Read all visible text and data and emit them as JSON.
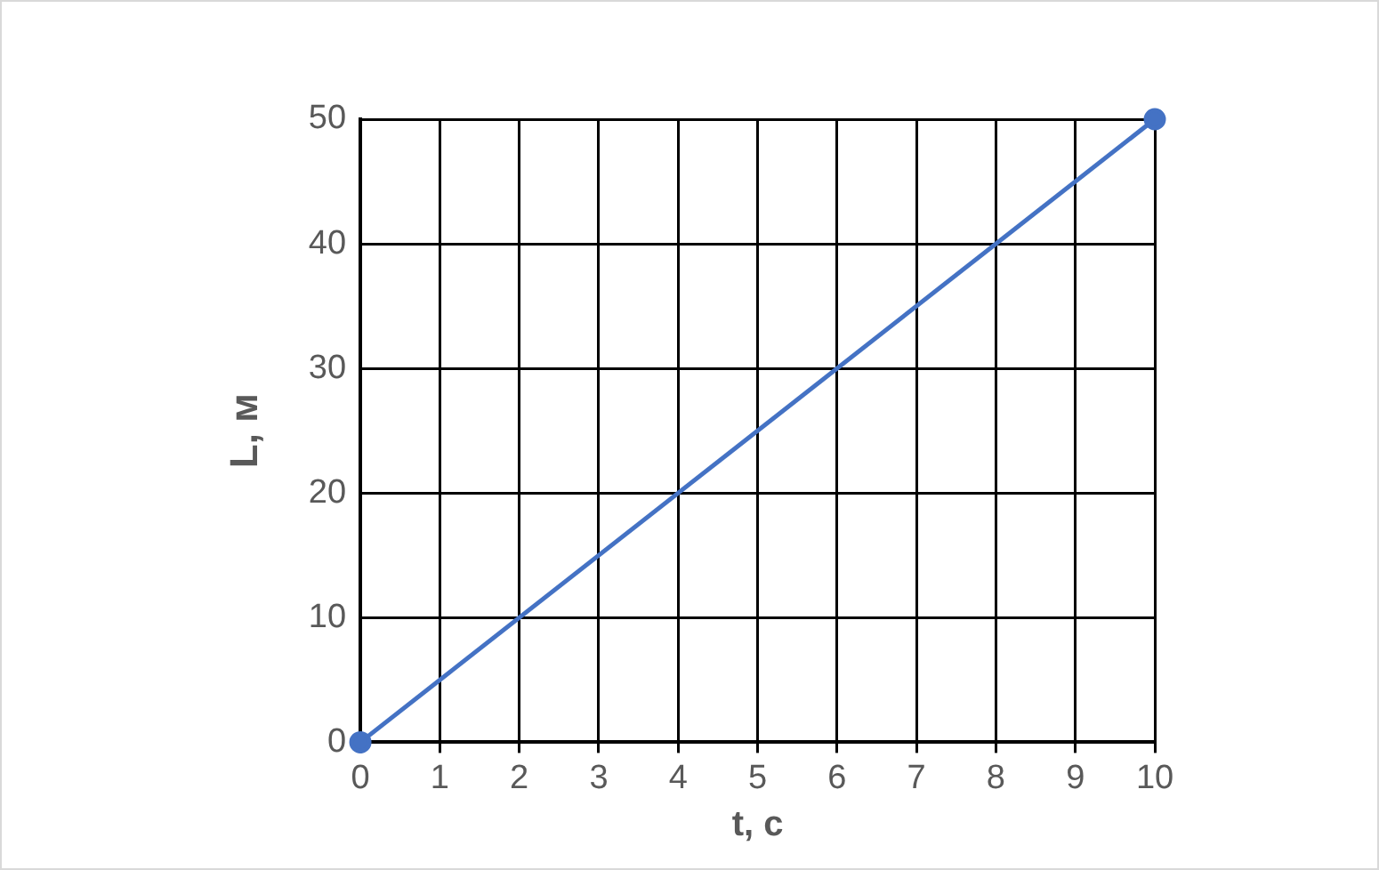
{
  "chart_data": {
    "type": "line",
    "xlabel": "t, с",
    "ylabel": "L, м",
    "x": [
      0,
      10
    ],
    "series": [
      {
        "color": "#4472c4",
        "values": [
          0,
          50
        ]
      }
    ],
    "xlim": [
      0,
      10
    ],
    "xticks": [
      0,
      1,
      2,
      3,
      4,
      5,
      6,
      7,
      8,
      9,
      10
    ],
    "ylim": [
      0,
      50
    ],
    "yticks": [
      0,
      10,
      20,
      30,
      40,
      50
    ],
    "grid": true,
    "marker": "circle",
    "line_style": "solid",
    "legend": false
  }
}
